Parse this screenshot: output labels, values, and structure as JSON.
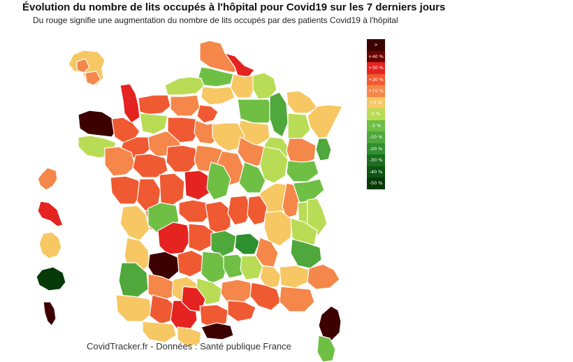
{
  "title": "Évolution du nombre de lits occupés à l'hôpital pour Covid19 sur les 7 derniers jours",
  "subtitle": "Du rouge signifie une augmentation du nombre de lits occupés par des patients Covid19 à l'hôpital",
  "source": "CovidTracker.fr - Données : Santé publique France",
  "corner_text": "·······",
  "legend": [
    {
      "label": ">",
      "color": "#3d0000"
    },
    {
      "label": "+40 %",
      "color": "#6b0000"
    },
    {
      "label": "+30 %",
      "color": "#e52320"
    },
    {
      "label": "+20 %",
      "color": "#f05a32"
    },
    {
      "label": "+10 %",
      "color": "#f5874a"
    },
    {
      "label": "+5 %",
      "color": "#f7c763"
    },
    {
      "label": "0 %",
      "color": "#b9dc56"
    },
    {
      "label": "-5 %",
      "color": "#6fbf45"
    },
    {
      "label": "-10 %",
      "color": "#4ea83b"
    },
    {
      "label": "-20 %",
      "color": "#2e8f2e"
    },
    {
      "label": "-30 %",
      "color": "#1b6e1e"
    },
    {
      "label": "-40 %",
      "color": "#0e5412"
    },
    {
      "label": "-50 %",
      "color": "#063a08"
    }
  ]
}
